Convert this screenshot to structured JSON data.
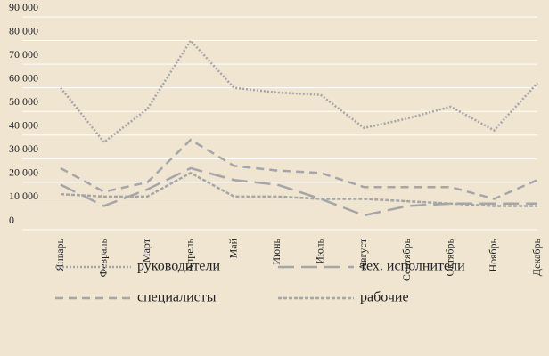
{
  "chart_data": {
    "type": "line",
    "categories": [
      "Январь",
      "Февраль",
      "Март",
      "Апрель",
      "Май",
      "Июнь",
      "Июль",
      "Август",
      "Сентябрь",
      "Октябрь",
      "Ноябрь",
      "Декабрь"
    ],
    "series": [
      {
        "name": "руководители",
        "color": "#a6a6a6",
        "dash": "2,2",
        "values": [
          60000,
          37000,
          51000,
          80000,
          60000,
          58000,
          57000,
          43000,
          47000,
          52000,
          42000,
          62000
        ]
      },
      {
        "name": "тех. исполнители",
        "color": "#a6a6a6",
        "dash": "18,8",
        "values": [
          19000,
          10000,
          17000,
          26000,
          21000,
          19000,
          13000,
          6000,
          10000,
          11000,
          11000,
          11000
        ]
      },
      {
        "name": "специалисты",
        "color": "#a6a6a6",
        "dash": "9,6",
        "values": [
          26000,
          16000,
          20000,
          38000,
          27000,
          25000,
          24000,
          18000,
          18000,
          18000,
          13000,
          21000
        ]
      },
      {
        "name": "рабочие",
        "color": "#a6a6a6",
        "dash": "4,2",
        "values": [
          15000,
          14000,
          14000,
          24000,
          14000,
          14000,
          13000,
          13000,
          12000,
          11000,
          10000,
          10000
        ]
      }
    ],
    "ylim": [
      0,
      90000
    ],
    "yticks": [
      0,
      {
        "value": 10000,
        "label": "10 000"
      },
      {
        "value": 20000,
        "label": "20 000"
      },
      {
        "value": 30000,
        "label": "30 000"
      },
      {
        "value": 40000,
        "label": "40 000"
      },
      {
        "value": 50000,
        "label": "50 000"
      },
      {
        "value": 60000,
        "label": "60 000"
      },
      {
        "value": 70000,
        "label": "70 000"
      },
      {
        "value": 80000,
        "label": "80 000"
      },
      {
        "value": 90000,
        "label": "90 000"
      }
    ],
    "grid": true
  }
}
